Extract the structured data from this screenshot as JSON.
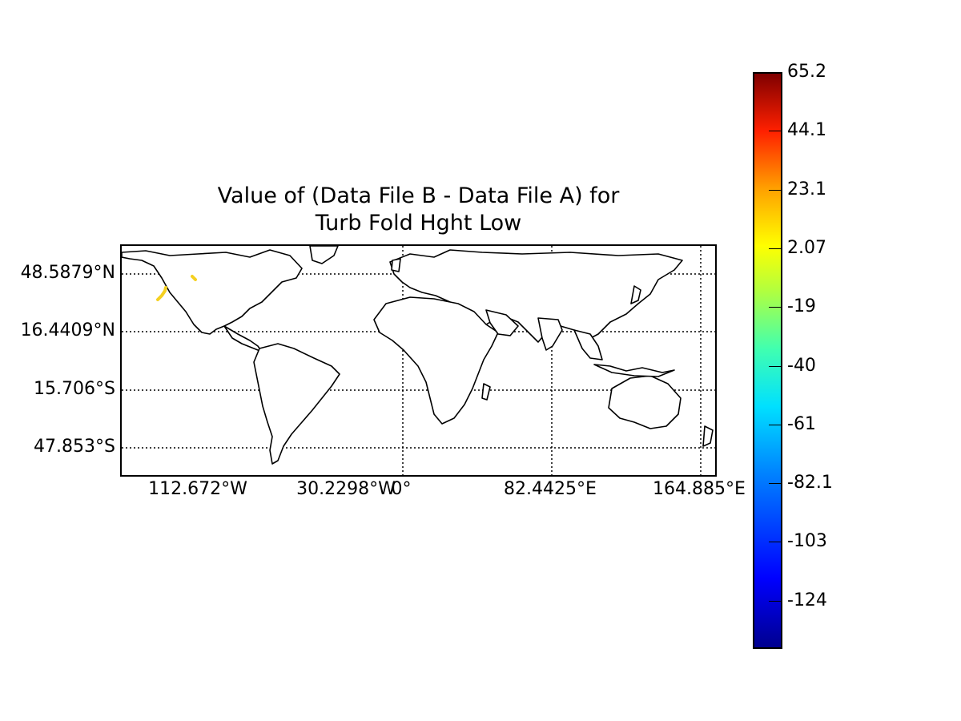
{
  "title_line1": "Value of (Data File B - Data File A) for",
  "title_line2": "Turb Fold Hght Low",
  "lat_labels": [
    "48.5879°N",
    "16.4409°N",
    "15.706°S",
    "47.853°S"
  ],
  "lon_labels": [
    "112.672°W",
    "30.2298°W",
    "0°",
    "82.4425°E",
    "164.885°E"
  ],
  "colorbar": {
    "ticks": [
      "65.2",
      "44.1",
      "23.1",
      "2.07",
      "-19",
      "-40",
      "-61",
      "-82.1",
      "-103",
      "-124"
    ],
    "min_color": "#00008f",
    "max_color": "#800000",
    "colormap": "jet"
  },
  "map": {
    "projection": "cylindrical",
    "grid": "dotted",
    "feature_color": "#f5d020"
  }
}
